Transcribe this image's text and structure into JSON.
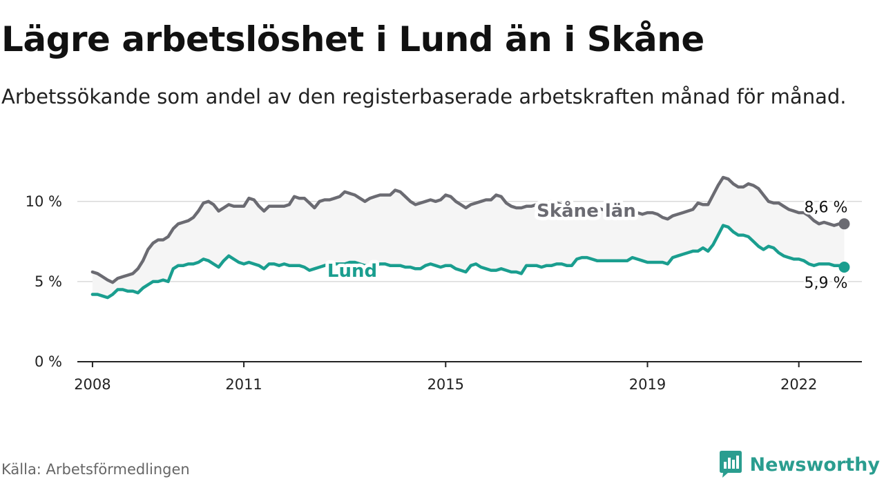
{
  "title": "Lägre arbetslöshet i Lund än i Skåne",
  "subtitle": "Arbetssökande som andel av den registerbaserade arbetskraften månad för månad.",
  "source": "Källa: Arbetsförmedlingen",
  "brand": {
    "name": "Newsworthy",
    "icon": "newsworthy-logo-icon",
    "color": "#2a9d8f"
  },
  "chart_data": {
    "type": "line",
    "title": "Lägre arbetslöshet i Lund än i Skåne",
    "xlabel": "",
    "ylabel": "",
    "x_ticks": [
      {
        "value": 2008,
        "label": "2008"
      },
      {
        "value": 2011,
        "label": "2011"
      },
      {
        "value": 2015,
        "label": "2015"
      },
      {
        "value": 2019,
        "label": "2019"
      },
      {
        "value": 2022,
        "label": "2022"
      }
    ],
    "y_ticks": [
      {
        "value": 0,
        "label": "0 %"
      },
      {
        "value": 5,
        "label": "5 %"
      },
      {
        "value": 10,
        "label": "10 %"
      }
    ],
    "xlim": [
      2007.7,
      2023.25
    ],
    "ylim": [
      0,
      11.8
    ],
    "grid": true,
    "series": [
      {
        "name": "Skåne län",
        "color": "#6b6b72",
        "end_label": "8,6 %",
        "end_value": 8.6,
        "points": [
          [
            2008.0,
            5.6
          ],
          [
            2008.1,
            5.5
          ],
          [
            2008.2,
            5.3
          ],
          [
            2008.3,
            5.1
          ],
          [
            2008.4,
            4.95
          ],
          [
            2008.5,
            5.2
          ],
          [
            2008.6,
            5.3
          ],
          [
            2008.7,
            5.4
          ],
          [
            2008.8,
            5.5
          ],
          [
            2008.9,
            5.8
          ],
          [
            2009.0,
            6.3
          ],
          [
            2009.1,
            7.0
          ],
          [
            2009.2,
            7.4
          ],
          [
            2009.3,
            7.6
          ],
          [
            2009.4,
            7.6
          ],
          [
            2009.5,
            7.8
          ],
          [
            2009.6,
            8.3
          ],
          [
            2009.7,
            8.6
          ],
          [
            2009.8,
            8.7
          ],
          [
            2009.9,
            8.8
          ],
          [
            2010.0,
            9.0
          ],
          [
            2010.1,
            9.4
          ],
          [
            2010.2,
            9.9
          ],
          [
            2010.3,
            10.0
          ],
          [
            2010.4,
            9.8
          ],
          [
            2010.5,
            9.4
          ],
          [
            2010.6,
            9.6
          ],
          [
            2010.7,
            9.8
          ],
          [
            2010.8,
            9.7
          ],
          [
            2010.9,
            9.7
          ],
          [
            2011.0,
            9.7
          ],
          [
            2011.1,
            10.2
          ],
          [
            2011.2,
            10.1
          ],
          [
            2011.3,
            9.7
          ],
          [
            2011.4,
            9.4
          ],
          [
            2011.5,
            9.7
          ],
          [
            2011.6,
            9.7
          ],
          [
            2011.7,
            9.7
          ],
          [
            2011.8,
            9.7
          ],
          [
            2011.9,
            9.8
          ],
          [
            2012.0,
            10.3
          ],
          [
            2012.1,
            10.2
          ],
          [
            2012.2,
            10.2
          ],
          [
            2012.3,
            9.9
          ],
          [
            2012.4,
            9.6
          ],
          [
            2012.5,
            10.0
          ],
          [
            2012.6,
            10.1
          ],
          [
            2012.7,
            10.1
          ],
          [
            2012.8,
            10.2
          ],
          [
            2012.9,
            10.3
          ],
          [
            2013.0,
            10.6
          ],
          [
            2013.1,
            10.5
          ],
          [
            2013.2,
            10.4
          ],
          [
            2013.3,
            10.2
          ],
          [
            2013.4,
            10.0
          ],
          [
            2013.5,
            10.2
          ],
          [
            2013.6,
            10.3
          ],
          [
            2013.7,
            10.4
          ],
          [
            2013.8,
            10.4
          ],
          [
            2013.9,
            10.4
          ],
          [
            2014.0,
            10.7
          ],
          [
            2014.1,
            10.6
          ],
          [
            2014.2,
            10.3
          ],
          [
            2014.3,
            10.0
          ],
          [
            2014.4,
            9.8
          ],
          [
            2014.5,
            9.9
          ],
          [
            2014.6,
            10.0
          ],
          [
            2014.7,
            10.1
          ],
          [
            2014.8,
            10.0
          ],
          [
            2014.9,
            10.1
          ],
          [
            2015.0,
            10.4
          ],
          [
            2015.1,
            10.3
          ],
          [
            2015.2,
            10.0
          ],
          [
            2015.3,
            9.8
          ],
          [
            2015.4,
            9.6
          ],
          [
            2015.5,
            9.8
          ],
          [
            2015.6,
            9.9
          ],
          [
            2015.7,
            10.0
          ],
          [
            2015.8,
            10.1
          ],
          [
            2015.9,
            10.1
          ],
          [
            2016.0,
            10.4
          ],
          [
            2016.1,
            10.3
          ],
          [
            2016.2,
            9.9
          ],
          [
            2016.3,
            9.7
          ],
          [
            2016.4,
            9.6
          ],
          [
            2016.5,
            9.6
          ],
          [
            2016.6,
            9.7
          ],
          [
            2016.7,
            9.7
          ],
          [
            2016.8,
            9.8
          ],
          [
            2016.9,
            9.8
          ],
          [
            2017.0,
            9.9
          ],
          [
            2017.1,
            10.0
          ],
          [
            2017.2,
            9.9
          ],
          [
            2017.3,
            9.8
          ],
          [
            2017.4,
            9.7
          ],
          [
            2017.5,
            9.6
          ],
          [
            2017.6,
            9.6
          ],
          [
            2017.7,
            9.5
          ],
          [
            2017.8,
            9.5
          ],
          [
            2017.9,
            9.4
          ],
          [
            2018.0,
            9.6
          ],
          [
            2018.1,
            9.5
          ],
          [
            2018.2,
            9.4
          ],
          [
            2018.3,
            9.3
          ],
          [
            2018.4,
            9.1
          ],
          [
            2018.5,
            9.3
          ],
          [
            2018.6,
            9.3
          ],
          [
            2018.7,
            9.3
          ],
          [
            2018.8,
            9.3
          ],
          [
            2018.9,
            9.2
          ],
          [
            2019.0,
            9.3
          ],
          [
            2019.1,
            9.3
          ],
          [
            2019.2,
            9.2
          ],
          [
            2019.3,
            9.0
          ],
          [
            2019.4,
            8.9
          ],
          [
            2019.5,
            9.1
          ],
          [
            2019.6,
            9.2
          ],
          [
            2019.7,
            9.3
          ],
          [
            2019.8,
            9.4
          ],
          [
            2019.9,
            9.5
          ],
          [
            2020.0,
            9.9
          ],
          [
            2020.1,
            9.8
          ],
          [
            2020.2,
            9.8
          ],
          [
            2020.3,
            10.4
          ],
          [
            2020.4,
            11.0
          ],
          [
            2020.5,
            11.5
          ],
          [
            2020.6,
            11.4
          ],
          [
            2020.7,
            11.1
          ],
          [
            2020.8,
            10.9
          ],
          [
            2020.9,
            10.9
          ],
          [
            2021.0,
            11.1
          ],
          [
            2021.1,
            11.0
          ],
          [
            2021.2,
            10.8
          ],
          [
            2021.3,
            10.4
          ],
          [
            2021.4,
            10.0
          ],
          [
            2021.5,
            9.9
          ],
          [
            2021.6,
            9.9
          ],
          [
            2021.7,
            9.7
          ],
          [
            2021.8,
            9.5
          ],
          [
            2021.9,
            9.4
          ],
          [
            2022.0,
            9.3
          ],
          [
            2022.1,
            9.3
          ],
          [
            2022.2,
            9.1
          ],
          [
            2022.3,
            8.8
          ],
          [
            2022.4,
            8.6
          ],
          [
            2022.5,
            8.7
          ],
          [
            2022.6,
            8.6
          ],
          [
            2022.7,
            8.5
          ],
          [
            2022.8,
            8.6
          ],
          [
            2022.9,
            8.6
          ]
        ]
      },
      {
        "name": "Lund",
        "color": "#1a9e8f",
        "end_label": "5,9 %",
        "end_value": 5.9,
        "points": [
          [
            2008.0,
            4.2
          ],
          [
            2008.1,
            4.2
          ],
          [
            2008.2,
            4.1
          ],
          [
            2008.3,
            4.0
          ],
          [
            2008.4,
            4.2
          ],
          [
            2008.5,
            4.5
          ],
          [
            2008.6,
            4.5
          ],
          [
            2008.7,
            4.4
          ],
          [
            2008.8,
            4.4
          ],
          [
            2008.9,
            4.3
          ],
          [
            2009.0,
            4.6
          ],
          [
            2009.1,
            4.8
          ],
          [
            2009.2,
            5.0
          ],
          [
            2009.3,
            5.0
          ],
          [
            2009.4,
            5.1
          ],
          [
            2009.5,
            5.0
          ],
          [
            2009.6,
            5.8
          ],
          [
            2009.7,
            6.0
          ],
          [
            2009.8,
            6.0
          ],
          [
            2009.9,
            6.1
          ],
          [
            2010.0,
            6.1
          ],
          [
            2010.1,
            6.2
          ],
          [
            2010.2,
            6.4
          ],
          [
            2010.3,
            6.3
          ],
          [
            2010.4,
            6.1
          ],
          [
            2010.5,
            5.9
          ],
          [
            2010.6,
            6.3
          ],
          [
            2010.7,
            6.6
          ],
          [
            2010.8,
            6.4
          ],
          [
            2010.9,
            6.2
          ],
          [
            2011.0,
            6.1
          ],
          [
            2011.1,
            6.2
          ],
          [
            2011.2,
            6.1
          ],
          [
            2011.3,
            6.0
          ],
          [
            2011.4,
            5.8
          ],
          [
            2011.5,
            6.1
          ],
          [
            2011.6,
            6.1
          ],
          [
            2011.7,
            6.0
          ],
          [
            2011.8,
            6.1
          ],
          [
            2011.9,
            6.0
          ],
          [
            2012.0,
            6.0
          ],
          [
            2012.1,
            6.0
          ],
          [
            2012.2,
            5.9
          ],
          [
            2012.3,
            5.7
          ],
          [
            2012.4,
            5.8
          ],
          [
            2012.5,
            5.9
          ],
          [
            2012.6,
            6.0
          ],
          [
            2012.7,
            6.1
          ],
          [
            2012.8,
            6.1
          ],
          [
            2012.9,
            6.1
          ],
          [
            2013.0,
            6.1
          ],
          [
            2013.1,
            6.2
          ],
          [
            2013.2,
            6.2
          ],
          [
            2013.3,
            6.1
          ],
          [
            2013.4,
            6.0
          ],
          [
            2013.5,
            6.0
          ],
          [
            2013.6,
            6.0
          ],
          [
            2013.7,
            6.1
          ],
          [
            2013.8,
            6.1
          ],
          [
            2013.9,
            6.0
          ],
          [
            2014.0,
            6.0
          ],
          [
            2014.1,
            6.0
          ],
          [
            2014.2,
            5.9
          ],
          [
            2014.3,
            5.9
          ],
          [
            2014.4,
            5.8
          ],
          [
            2014.5,
            5.8
          ],
          [
            2014.6,
            6.0
          ],
          [
            2014.7,
            6.1
          ],
          [
            2014.8,
            6.0
          ],
          [
            2014.9,
            5.9
          ],
          [
            2015.0,
            6.0
          ],
          [
            2015.1,
            6.0
          ],
          [
            2015.2,
            5.8
          ],
          [
            2015.3,
            5.7
          ],
          [
            2015.4,
            5.6
          ],
          [
            2015.5,
            6.0
          ],
          [
            2015.6,
            6.1
          ],
          [
            2015.7,
            5.9
          ],
          [
            2015.8,
            5.8
          ],
          [
            2015.9,
            5.7
          ],
          [
            2016.0,
            5.7
          ],
          [
            2016.1,
            5.8
          ],
          [
            2016.2,
            5.7
          ],
          [
            2016.3,
            5.6
          ],
          [
            2016.4,
            5.6
          ],
          [
            2016.5,
            5.5
          ],
          [
            2016.6,
            6.0
          ],
          [
            2016.7,
            6.0
          ],
          [
            2016.8,
            6.0
          ],
          [
            2016.9,
            5.9
          ],
          [
            2017.0,
            6.0
          ],
          [
            2017.1,
            6.0
          ],
          [
            2017.2,
            6.1
          ],
          [
            2017.3,
            6.1
          ],
          [
            2017.4,
            6.0
          ],
          [
            2017.5,
            6.0
          ],
          [
            2017.6,
            6.4
          ],
          [
            2017.7,
            6.5
          ],
          [
            2017.8,
            6.5
          ],
          [
            2017.9,
            6.4
          ],
          [
            2018.0,
            6.3
          ],
          [
            2018.1,
            6.3
          ],
          [
            2018.2,
            6.3
          ],
          [
            2018.3,
            6.3
          ],
          [
            2018.4,
            6.3
          ],
          [
            2018.5,
            6.3
          ],
          [
            2018.6,
            6.3
          ],
          [
            2018.7,
            6.5
          ],
          [
            2018.8,
            6.4
          ],
          [
            2018.9,
            6.3
          ],
          [
            2019.0,
            6.2
          ],
          [
            2019.1,
            6.2
          ],
          [
            2019.2,
            6.2
          ],
          [
            2019.3,
            6.2
          ],
          [
            2019.4,
            6.1
          ],
          [
            2019.5,
            6.5
          ],
          [
            2019.6,
            6.6
          ],
          [
            2019.7,
            6.7
          ],
          [
            2019.8,
            6.8
          ],
          [
            2019.9,
            6.9
          ],
          [
            2020.0,
            6.9
          ],
          [
            2020.1,
            7.1
          ],
          [
            2020.2,
            6.9
          ],
          [
            2020.3,
            7.3
          ],
          [
            2020.4,
            7.9
          ],
          [
            2020.5,
            8.5
          ],
          [
            2020.6,
            8.4
          ],
          [
            2020.7,
            8.1
          ],
          [
            2020.8,
            7.9
          ],
          [
            2020.9,
            7.9
          ],
          [
            2021.0,
            7.8
          ],
          [
            2021.1,
            7.5
          ],
          [
            2021.2,
            7.2
          ],
          [
            2021.3,
            7.0
          ],
          [
            2021.4,
            7.2
          ],
          [
            2021.5,
            7.1
          ],
          [
            2021.6,
            6.8
          ],
          [
            2021.7,
            6.6
          ],
          [
            2021.8,
            6.5
          ],
          [
            2021.9,
            6.4
          ],
          [
            2022.0,
            6.4
          ],
          [
            2022.1,
            6.3
          ],
          [
            2022.2,
            6.1
          ],
          [
            2022.3,
            6.0
          ],
          [
            2022.4,
            6.1
          ],
          [
            2022.5,
            6.1
          ],
          [
            2022.6,
            6.1
          ],
          [
            2022.7,
            6.0
          ],
          [
            2022.8,
            6.0
          ],
          [
            2022.9,
            5.9
          ]
        ]
      }
    ]
  }
}
